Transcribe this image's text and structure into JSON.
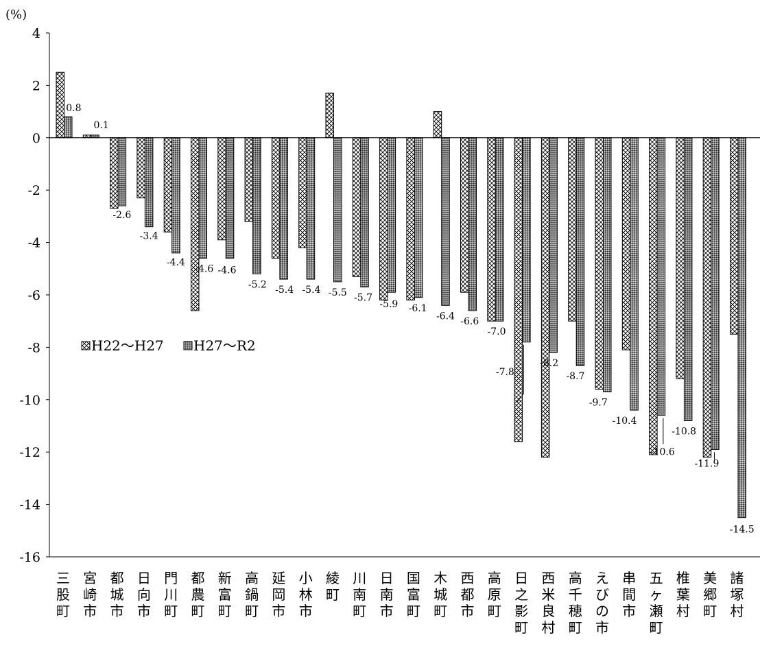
{
  "chart_data": {
    "type": "bar",
    "unit_label": "(%)",
    "categories": [
      "三股町",
      "宮崎市",
      "都城市",
      "日向市",
      "門川町",
      "都農町",
      "新富町",
      "高鍋町",
      "延岡市",
      "小林市",
      "綾町",
      "川南町",
      "日南市",
      "国富町",
      "木城町",
      "西都市",
      "高原町",
      "日之影町",
      "西米良村",
      "高千穂町",
      "えびの市",
      "串間市",
      "五ヶ瀬町",
      "椎葉村",
      "美郷町",
      "諸塚村"
    ],
    "series": [
      {
        "name": "H22～H27",
        "pattern": "crosshatch",
        "values": [
          2.5,
          0.1,
          -2.7,
          -2.3,
          -3.6,
          -6.6,
          -3.9,
          -3.2,
          -4.6,
          -4.2,
          1.7,
          -5.3,
          -6.2,
          -6.2,
          1.0,
          -5.9,
          -7.0,
          -11.6,
          -12.2,
          -7.0,
          -9.6,
          -8.1,
          -12.1,
          -9.2,
          -12.2,
          -7.5
        ]
      },
      {
        "name": "H27～R2",
        "pattern": "dense",
        "values": [
          0.8,
          0.1,
          -2.6,
          -3.4,
          -4.4,
          -4.6,
          -4.6,
          -5.2,
          -5.4,
          -5.4,
          -5.5,
          -5.7,
          -5.9,
          -6.1,
          -6.4,
          -6.6,
          -7.0,
          -7.8,
          -8.2,
          -8.7,
          -9.7,
          -10.4,
          -10.6,
          -10.8,
          -11.9,
          -14.5
        ]
      }
    ],
    "data_labels": [
      "0.8",
      "0.1",
      "-2.6",
      "-3.4",
      "-4.4",
      "-4.6",
      "-4.6",
      "-5.2",
      "-5.4",
      "-5.4",
      "-5.5",
      "-5.7",
      "-5.9",
      "-6.1",
      "-6.4",
      "-6.6",
      "-7.0",
      "-7.8",
      "-8.2",
      "-8.7",
      "-9.7",
      "-10.4",
      "-10.6",
      "-10.8",
      "-11.9",
      "-14.5"
    ],
    "y_ticks": [
      "4",
      "2",
      "0",
      "-2",
      "-4",
      "-6",
      "-8",
      "-10",
      "-12",
      "-14",
      "-16"
    ],
    "ylim": [
      -16,
      4
    ],
    "grid": false,
    "legend_position": "left-middle"
  }
}
